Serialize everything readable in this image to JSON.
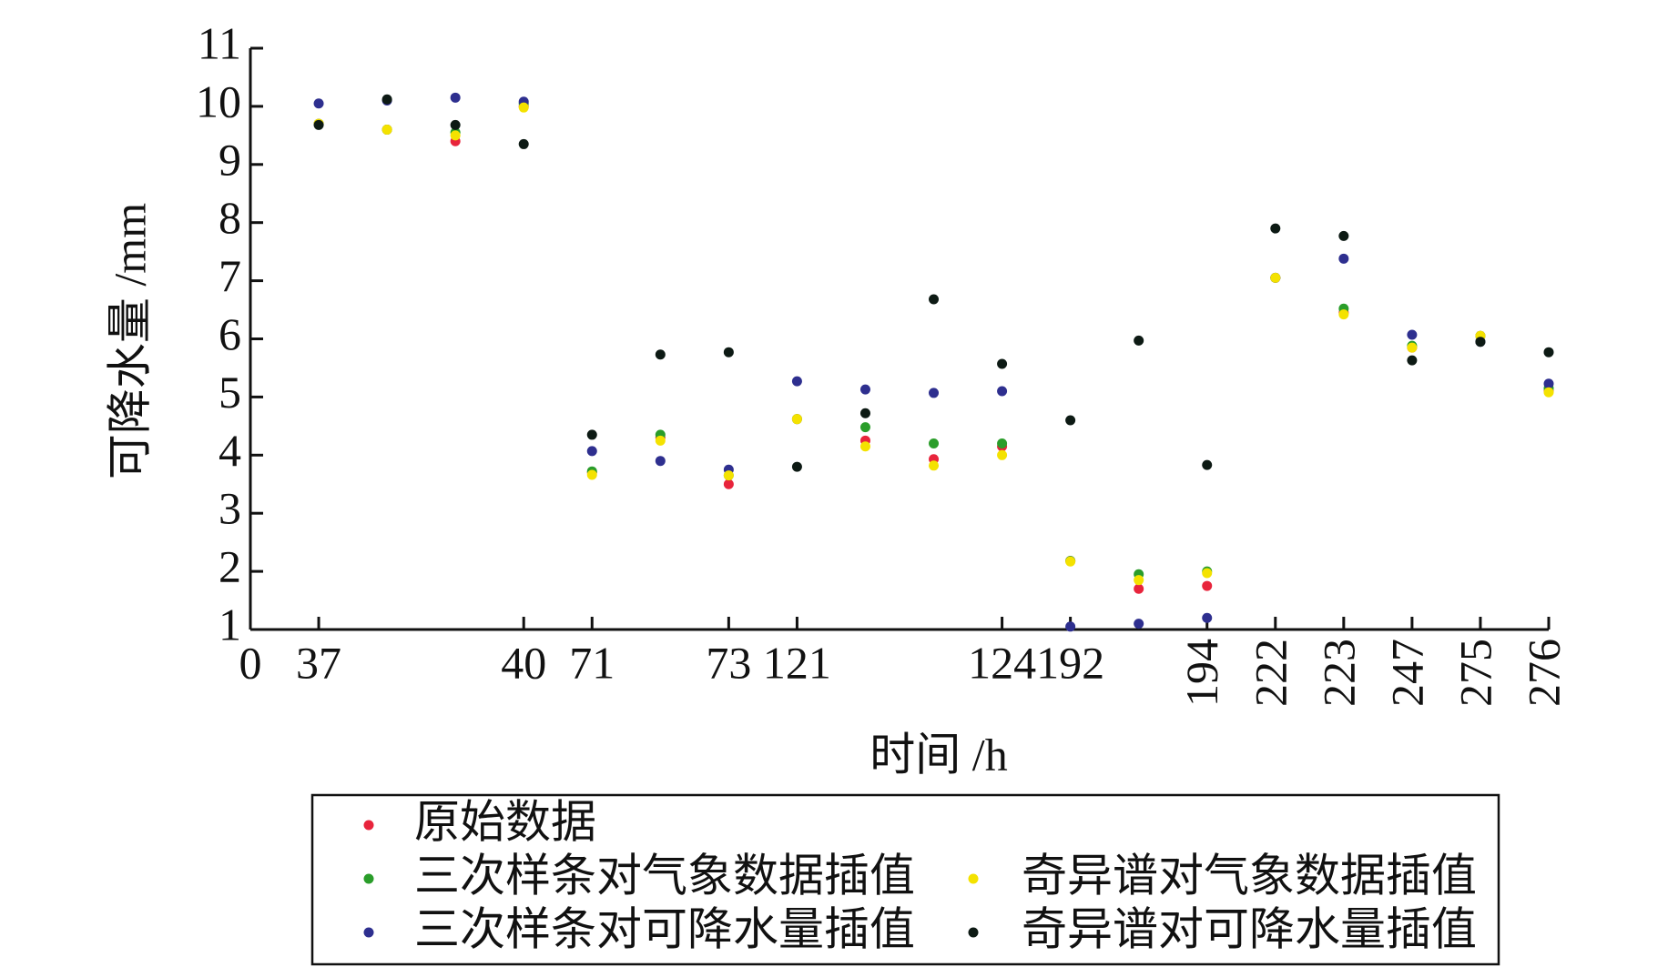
{
  "chart_data": {
    "type": "scatter",
    "xlabel": "时间 /h",
    "ylabel": "可降水量 /mm",
    "x": [
      1,
      2,
      3,
      4,
      5,
      6,
      7,
      8,
      9,
      10,
      11,
      12,
      13,
      14,
      15,
      16,
      17,
      18,
      19
    ],
    "xlim": [
      0,
      19
    ],
    "xticks": [
      {
        "value": 0,
        "label": "0"
      },
      {
        "value": 1,
        "label": "37"
      },
      {
        "value": 4,
        "label": "40"
      },
      {
        "value": 5,
        "label": "71"
      },
      {
        "value": 7,
        "label": "73"
      },
      {
        "value": 8,
        "label": "121"
      },
      {
        "value": 11,
        "label": "124"
      },
      {
        "value": 12,
        "label": "192"
      },
      {
        "value": 14,
        "label": "194"
      },
      {
        "value": 15,
        "label": "222"
      },
      {
        "value": 16,
        "label": "223"
      },
      {
        "value": 17,
        "label": "247"
      },
      {
        "value": 18,
        "label": "275"
      },
      {
        "value": 19,
        "label": "276"
      }
    ],
    "ylim": [
      1,
      11
    ],
    "yticks": [
      1,
      2,
      3,
      4,
      5,
      6,
      7,
      8,
      9,
      10,
      11
    ],
    "legend": "bottom",
    "series": [
      {
        "name": "原始数据",
        "color": "#e8243c",
        "values": [
          9.7,
          9.6,
          9.4,
          10.0,
          3.7,
          4.3,
          3.5,
          4.62,
          4.25,
          3.93,
          4.15,
          2.18,
          1.7,
          1.75,
          7.05,
          6.45,
          5.85,
          6.05,
          5.1
        ]
      },
      {
        "name": "三次样条对气象数据插值",
        "color": "#2a9d2a",
        "values": [
          9.7,
          9.6,
          9.55,
          10.05,
          3.72,
          4.35,
          3.65,
          4.62,
          4.48,
          4.2,
          4.2,
          2.18,
          1.95,
          2.0,
          7.05,
          6.52,
          5.88,
          6.05,
          5.15
        ]
      },
      {
        "name": "三次样条对可降水量插值",
        "color": "#2e2f8f",
        "values": [
          10.05,
          10.1,
          10.15,
          10.08,
          4.07,
          3.9,
          3.75,
          5.27,
          5.13,
          5.07,
          5.1,
          1.05,
          1.1,
          1.2,
          7.05,
          7.38,
          6.07,
          5.95,
          5.23
        ]
      },
      {
        "name": "奇异谱对气象数据插值",
        "color": "#f4e200",
        "values": [
          9.7,
          9.6,
          9.5,
          9.98,
          3.66,
          4.25,
          3.65,
          4.62,
          4.15,
          3.82,
          4.0,
          2.17,
          1.85,
          1.97,
          7.05,
          6.42,
          5.85,
          6.05,
          5.08
        ]
      },
      {
        "name": "奇异谱对可降水量插值",
        "color": "#0d1a14",
        "values": [
          9.68,
          10.12,
          9.68,
          9.35,
          4.35,
          5.73,
          5.77,
          3.8,
          4.72,
          6.68,
          5.57,
          4.6,
          5.97,
          3.83,
          7.9,
          7.77,
          5.63,
          5.95,
          5.77
        ]
      }
    ]
  }
}
